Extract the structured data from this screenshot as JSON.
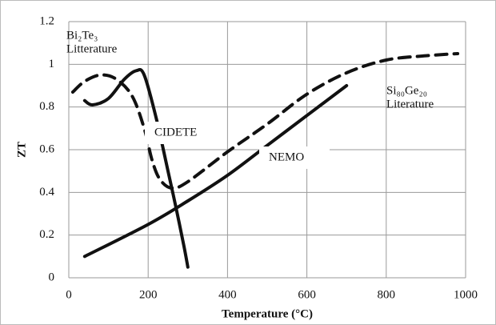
{
  "chart_data": {
    "type": "line",
    "xlabel": "Temperature  (°C)",
    "ylabel": "ZT",
    "xlim": [
      0,
      1000
    ],
    "xticks": [
      0,
      200,
      400,
      600,
      800,
      1000
    ],
    "ylim": [
      0,
      1.2
    ],
    "yticks": [
      0,
      0.2,
      0.4,
      0.6,
      0.8,
      1,
      1.2
    ],
    "grid": true,
    "series": [
      {
        "color": "#111111",
        "dashed": true,
        "x": [
          10,
          40,
          80,
          120,
          160,
          190,
          210,
          230,
          260,
          300,
          400,
          500,
          600,
          700,
          800,
          900,
          980
        ],
        "values": [
          0.87,
          0.92,
          0.95,
          0.93,
          0.85,
          0.7,
          0.55,
          0.46,
          0.42,
          0.45,
          0.59,
          0.72,
          0.86,
          0.96,
          1.02,
          1.04,
          1.05
        ]
      },
      {
        "color": "#111111",
        "dashed": false,
        "x": [
          40,
          60,
          100,
          140,
          170,
          190,
          220,
          250,
          270,
          290,
          300
        ],
        "values": [
          0.83,
          0.81,
          0.84,
          0.93,
          0.97,
          0.95,
          0.75,
          0.5,
          0.33,
          0.15,
          0.05
        ]
      },
      {
        "color": "#111111",
        "dashed": false,
        "x": [
          40,
          200,
          300,
          400,
          500,
          600,
          700
        ],
        "values": [
          0.1,
          0.25,
          0.36,
          0.48,
          0.62,
          0.76,
          0.9
        ]
      }
    ],
    "annotations": [
      {
        "lines": [
          "Bi₂Te₃",
          "Litterature"
        ],
        "boxed": false
      },
      {
        "lines": [
          "CIDETE"
        ],
        "boxed": true
      },
      {
        "lines": [
          "NEMO"
        ],
        "boxed": true
      },
      {
        "lines": [
          "Si₈₀Ge₂₀",
          "Literature"
        ],
        "boxed": false
      }
    ]
  }
}
